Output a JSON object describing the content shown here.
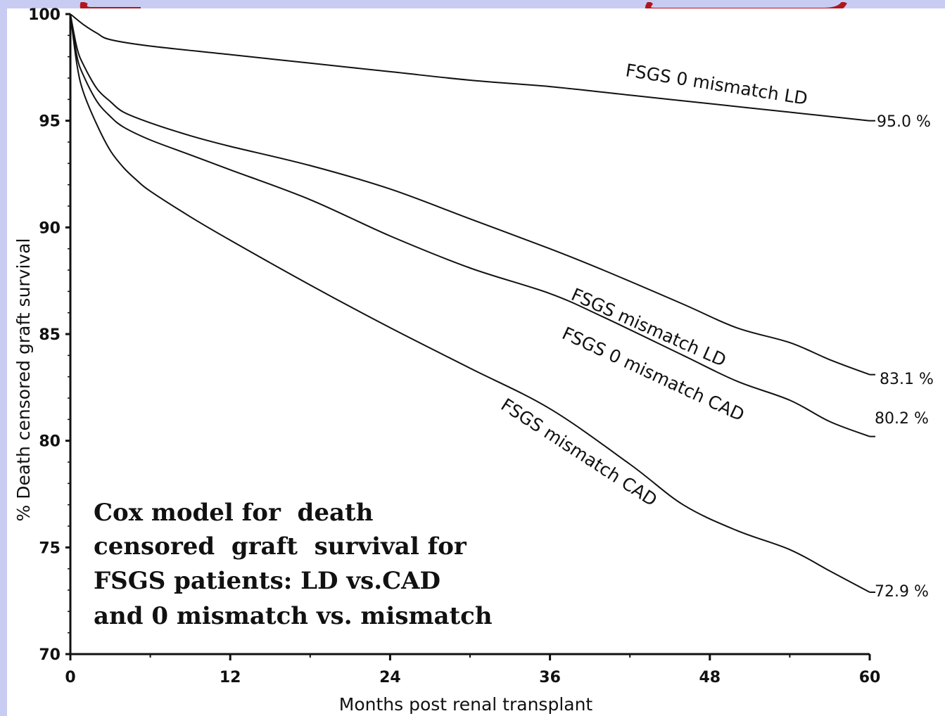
{
  "chart_data": {
    "type": "line",
    "title": "",
    "xlabel": "Months post renal transplant",
    "ylabel": "% Death censored graft survival",
    "xlim": [
      0,
      60
    ],
    "ylim": [
      70,
      100
    ],
    "x_ticks": [
      "0",
      "12",
      "24",
      "36",
      "48",
      "60"
    ],
    "y_ticks": [
      "70",
      "75",
      "80",
      "85",
      "90",
      "95",
      "100"
    ],
    "grid": false,
    "series": [
      {
        "name": "FSGS 0 mismatch LD",
        "end_label": "95.0 %",
        "x": [
          0,
          1,
          2,
          3,
          6,
          12,
          18,
          24,
          30,
          36,
          42,
          48,
          54,
          60
        ],
        "y": [
          100,
          99.5,
          99.1,
          98.8,
          98.5,
          98.1,
          97.7,
          97.3,
          96.9,
          96.6,
          96.2,
          95.8,
          95.4,
          95.0
        ]
      },
      {
        "name": "FSGS mismatch LD",
        "end_label": "83.1 %",
        "x": [
          0,
          0.5,
          1,
          2,
          3,
          4,
          6,
          9,
          12,
          18,
          24,
          30,
          36,
          40,
          46,
          50,
          54,
          57,
          60
        ],
        "y": [
          100,
          98.4,
          97.6,
          96.5,
          95.9,
          95.4,
          94.9,
          94.3,
          93.8,
          92.9,
          91.8,
          90.4,
          89.0,
          88.0,
          86.4,
          85.3,
          84.6,
          83.8,
          83.1
        ]
      },
      {
        "name": "FSGS 0 mismatch CAD",
        "end_label": "80.2 %",
        "x": [
          0,
          0.5,
          1,
          2,
          3,
          4,
          6,
          9,
          12,
          18,
          24,
          30,
          36,
          40,
          46,
          50,
          54,
          57,
          60
        ],
        "y": [
          100,
          98.0,
          97.1,
          95.9,
          95.2,
          94.7,
          94.1,
          93.4,
          92.7,
          91.3,
          89.6,
          88.1,
          86.9,
          85.8,
          84.0,
          82.8,
          81.9,
          80.9,
          80.2
        ]
      },
      {
        "name": "FSGS mismatch CAD",
        "end_label": "72.9 %",
        "x": [
          0,
          0.5,
          1,
          2,
          3,
          4,
          5,
          6,
          9,
          12,
          18,
          24,
          30,
          36,
          42,
          46,
          50,
          54,
          57,
          60
        ],
        "y": [
          100,
          97.6,
          96.3,
          94.8,
          93.6,
          92.8,
          92.2,
          91.7,
          90.5,
          89.4,
          87.3,
          85.3,
          83.4,
          81.5,
          78.9,
          77.0,
          75.8,
          74.9,
          73.9,
          72.9
        ]
      }
    ],
    "annotation": [
      "Cox model for  death",
      "censored  graft  survival for",
      "FSGS patients: LD vs.CAD",
      "and 0 mismatch vs. mismatch"
    ]
  }
}
